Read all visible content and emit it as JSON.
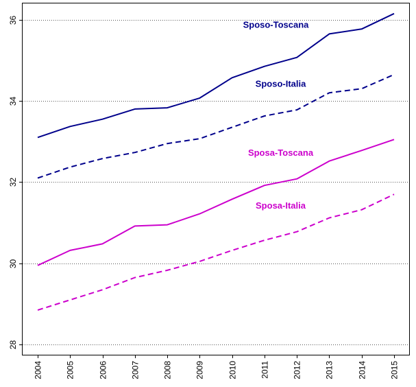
{
  "chart_data": {
    "type": "line",
    "title": "",
    "xlabel": "",
    "ylabel": "",
    "x": [
      2004,
      2005,
      2006,
      2007,
      2008,
      2009,
      2010,
      2011,
      2012,
      2013,
      2014,
      2015
    ],
    "ylim": [
      27.75,
      36.4
    ],
    "yticks": [
      28,
      30,
      32,
      34,
      36
    ],
    "grid": "horizontal dotted at y ticks",
    "series": [
      {
        "name": "Sposo-Toscana",
        "color": "#00008B",
        "dash": "solid",
        "values": [
          33.1,
          33.37,
          33.55,
          33.8,
          33.83,
          34.07,
          34.57,
          34.85,
          35.07,
          35.65,
          35.77,
          36.15
        ]
      },
      {
        "name": "Sposo-Italia",
        "color": "#00008B",
        "dash": "dashed",
        "values": [
          32.1,
          32.37,
          32.58,
          32.73,
          32.95,
          33.07,
          33.35,
          33.63,
          33.78,
          34.2,
          34.3,
          34.65
        ]
      },
      {
        "name": "Sposa-Toscana",
        "color": "#CC00CC",
        "dash": "solid",
        "values": [
          29.95,
          30.32,
          30.48,
          30.92,
          30.95,
          31.22,
          31.58,
          31.92,
          32.08,
          32.52,
          32.78,
          33.05
        ]
      },
      {
        "name": "Sposa-Italia",
        "color": "#CC00CC",
        "dash": "dashed",
        "values": [
          28.85,
          29.1,
          29.35,
          29.65,
          29.83,
          30.05,
          30.32,
          30.57,
          30.78,
          31.12,
          31.32,
          31.7
        ]
      }
    ]
  }
}
